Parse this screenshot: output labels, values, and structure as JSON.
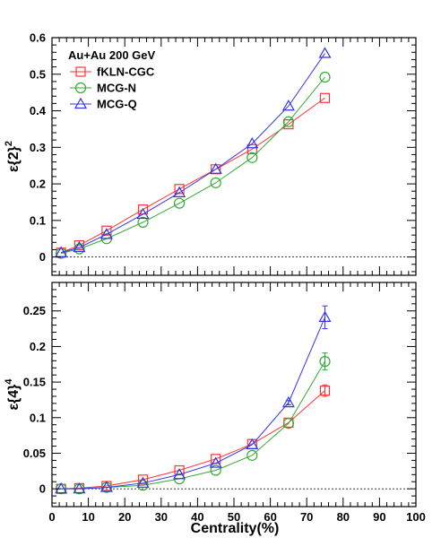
{
  "chart_data": [
    {
      "type": "line",
      "panel": "top",
      "ylabel_base": "ε{2}",
      "ylabel_sup": "2",
      "xlabel": "",
      "xlim": [
        0,
        100
      ],
      "ylim": [
        -0.05,
        0.6
      ],
      "yticks": [
        0,
        0.1,
        0.2,
        0.3,
        0.4,
        0.5,
        0.6
      ],
      "ytick_labels": [
        "0",
        "0.1",
        "0.2",
        "0.3",
        "0.4",
        "0.5",
        "0.6"
      ],
      "zero_line": "dashed",
      "grid": false,
      "legend": {
        "placement": "top-left",
        "title": "Au+Au 200 GeV"
      },
      "x": [
        2.5,
        7.5,
        15,
        25,
        35,
        45,
        55,
        65,
        75
      ],
      "series": [
        {
          "name": "fKLN-CGC",
          "marker": "square",
          "color": "#ff3333",
          "values": [
            0.012,
            0.032,
            0.072,
            0.13,
            0.186,
            0.24,
            0.295,
            0.363,
            0.435
          ]
        },
        {
          "name": "MCG-N",
          "marker": "circle",
          "color": "#33aa33",
          "values": [
            0.01,
            0.022,
            0.05,
            0.095,
            0.147,
            0.203,
            0.272,
            0.37,
            0.492
          ]
        },
        {
          "name": "MCG-Q",
          "marker": "triangle",
          "color": "#3333ee",
          "values": [
            0.012,
            0.026,
            0.062,
            0.117,
            0.176,
            0.24,
            0.31,
            0.413,
            0.557
          ]
        }
      ]
    },
    {
      "type": "line",
      "panel": "bottom",
      "ylabel_base": "ε{4}",
      "ylabel_sup": "4",
      "xlabel": "Centrality(%)",
      "xlim": [
        0,
        100
      ],
      "ylim": [
        -0.025,
        0.29
      ],
      "xticks": [
        0,
        10,
        20,
        30,
        40,
        50,
        60,
        70,
        80,
        90,
        100
      ],
      "xtick_labels": [
        "0",
        "10",
        "20",
        "30",
        "40",
        "50",
        "60",
        "70",
        "80",
        "90",
        "100"
      ],
      "yticks": [
        0,
        0.05,
        0.1,
        0.15,
        0.2,
        0.25
      ],
      "ytick_labels": [
        "0",
        "0.05",
        "0.1",
        "0.15",
        "0.2",
        "0.25"
      ],
      "zero_line": "dashed",
      "grid": false,
      "x": [
        2.5,
        7.5,
        15,
        25,
        35,
        45,
        55,
        65,
        75
      ],
      "series": [
        {
          "name": "fKLN-CGC",
          "marker": "square",
          "color": "#ff3333",
          "values": [
            0.0,
            0.001,
            0.004,
            0.013,
            0.026,
            0.042,
            0.063,
            0.093,
            0.138
          ],
          "errors": [
            0,
            0,
            0,
            0,
            0,
            0,
            0,
            0,
            0.008
          ]
        },
        {
          "name": "MCG-N",
          "marker": "circle",
          "color": "#33aa33",
          "values": [
            0.0,
            0.0,
            0.002,
            0.005,
            0.014,
            0.026,
            0.047,
            0.092,
            0.179
          ],
          "errors": [
            0,
            0,
            0,
            0,
            0,
            0,
            0,
            0,
            0.012
          ]
        },
        {
          "name": "MCG-Q",
          "marker": "triangle",
          "color": "#3333ee",
          "values": [
            0.0,
            0.0,
            0.002,
            0.008,
            0.02,
            0.036,
            0.062,
            0.121,
            0.241
          ],
          "errors": [
            0,
            0,
            0,
            0,
            0,
            0,
            0,
            0.003,
            0.016
          ]
        }
      ]
    }
  ]
}
